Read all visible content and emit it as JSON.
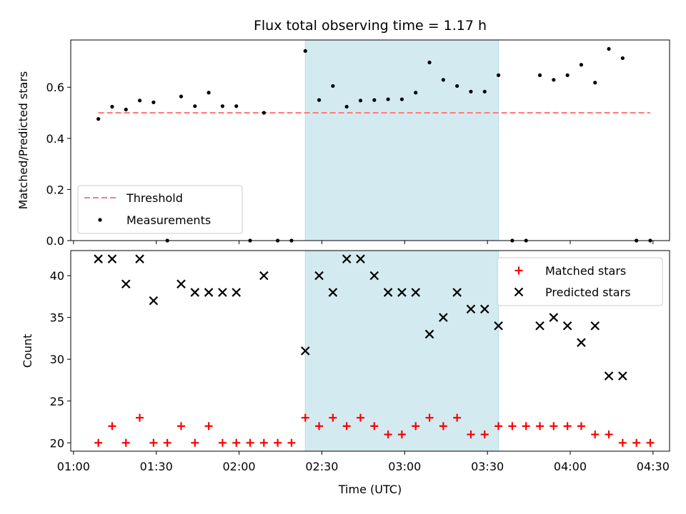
{
  "chart_data": [
    {
      "type": "scatter",
      "panel": "top",
      "title": "Flux total observing time = 1.17 h",
      "xlabel": "",
      "ylabel": "Matched/Predicted stars",
      "xlim": [
        "00:59",
        "04:36"
      ],
      "ylim": [
        0,
        0.785
      ],
      "yticks": [
        0.0,
        0.2,
        0.4,
        0.6
      ],
      "ytick_labels": [
        "0.0",
        "0.2",
        "0.4",
        "0.6"
      ],
      "xticks": [
        "01:00",
        "01:30",
        "02:00",
        "02:30",
        "03:00",
        "03:30",
        "04:00",
        "04:30"
      ],
      "xtick_labels": [],
      "highlight_span": [
        "02:24",
        "03:34"
      ],
      "highlight_color": "#d3eaf1",
      "legend_position": "lower-left",
      "series": [
        {
          "name": "Threshold",
          "style": "dashed-line",
          "color": "#ff7a7a",
          "x": [
            "01:09",
            "04:29"
          ],
          "y": [
            0.5,
            0.5
          ]
        },
        {
          "name": "Measurements",
          "style": "dot",
          "color": "#000000",
          "x": [
            "01:09",
            "01:14",
            "01:19",
            "01:24",
            "01:29",
            "01:34",
            "01:39",
            "01:44",
            "01:49",
            "01:54",
            "01:59",
            "02:04",
            "02:09",
            "02:14",
            "02:19",
            "02:24",
            "02:29",
            "02:34",
            "02:39",
            "02:44",
            "02:49",
            "02:54",
            "02:59",
            "03:04",
            "03:09",
            "03:14",
            "03:19",
            "03:24",
            "03:29",
            "03:34",
            "03:39",
            "03:44",
            "03:49",
            "03:54",
            "03:59",
            "04:04",
            "04:09",
            "04:14",
            "04:19",
            "04:24",
            "04:29"
          ],
          "y": [
            0.476,
            0.524,
            0.513,
            0.548,
            0.541,
            0,
            0.564,
            0.526,
            0.579,
            0.526,
            0.526,
            0,
            0.5,
            0,
            0,
            0.742,
            0.55,
            0.605,
            0.524,
            0.548,
            0.55,
            0.553,
            0.553,
            0.579,
            0.697,
            0.629,
            0.605,
            0.583,
            0.583,
            0.647,
            0,
            0,
            0.647,
            0.629,
            0.647,
            0.688,
            0.618,
            0.75,
            0.714,
            0,
            0
          ]
        }
      ]
    },
    {
      "type": "scatter",
      "panel": "bottom",
      "title": "",
      "xlabel": "Time (UTC)",
      "ylabel": "Count",
      "xlim": [
        "00:59",
        "04:36"
      ],
      "ylim": [
        19.0,
        43.0
      ],
      "yticks": [
        20,
        25,
        30,
        35,
        40
      ],
      "ytick_labels": [
        "20",
        "25",
        "30",
        "35",
        "40"
      ],
      "xticks": [
        "01:00",
        "01:30",
        "02:00",
        "02:30",
        "03:00",
        "03:30",
        "04:00",
        "04:30"
      ],
      "xtick_labels": [
        "01:00",
        "01:30",
        "02:00",
        "02:30",
        "03:00",
        "03:30",
        "04:00",
        "04:30"
      ],
      "highlight_span": [
        "02:24",
        "03:34"
      ],
      "highlight_color": "#d3eaf1",
      "legend_position": "upper-right",
      "x": [
        "01:09",
        "01:14",
        "01:19",
        "01:24",
        "01:29",
        "01:34",
        "01:39",
        "01:44",
        "01:49",
        "01:54",
        "01:59",
        "02:04",
        "02:09",
        "02:14",
        "02:19",
        "02:24",
        "02:29",
        "02:34",
        "02:39",
        "02:44",
        "02:49",
        "02:54",
        "02:59",
        "03:04",
        "03:09",
        "03:14",
        "03:19",
        "03:24",
        "03:29",
        "03:34",
        "03:39",
        "03:44",
        "03:49",
        "03:54",
        "03:59",
        "04:04",
        "04:09",
        "04:14",
        "04:19",
        "04:24",
        "04:29"
      ],
      "series": [
        {
          "name": "Matched stars",
          "marker": "plus",
          "color": "#ff0000",
          "values": [
            20,
            22,
            20,
            23,
            20,
            20,
            22,
            20,
            22,
            20,
            20,
            20,
            20,
            20,
            20,
            23,
            22,
            23,
            22,
            23,
            22,
            21,
            21,
            22,
            23,
            22,
            23,
            21,
            21,
            22,
            22,
            22,
            22,
            22,
            22,
            22,
            21,
            21,
            20,
            20,
            20
          ]
        },
        {
          "name": "Predicted stars",
          "marker": "x",
          "color": "#000000",
          "values": [
            42,
            42,
            39,
            42,
            37,
            null,
            39,
            38,
            38,
            38,
            38,
            null,
            40,
            null,
            null,
            31,
            40,
            38,
            42,
            42,
            40,
            38,
            38,
            38,
            33,
            35,
            38,
            36,
            36,
            34,
            null,
            null,
            34,
            35,
            34,
            32,
            34,
            28,
            28,
            null,
            null
          ]
        }
      ]
    }
  ]
}
